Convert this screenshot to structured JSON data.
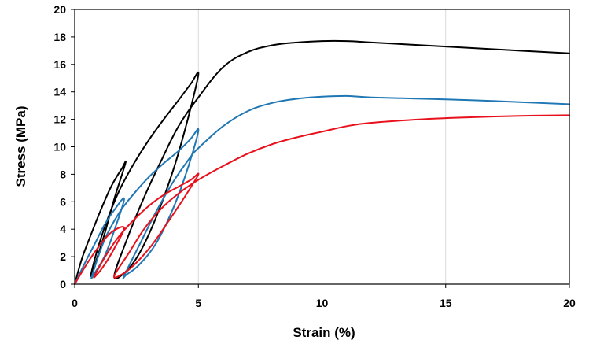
{
  "chart_data": {
    "type": "line",
    "title": "",
    "xlabel": "Strain (%)",
    "ylabel": "Stress (MPa)",
    "xlim": [
      0,
      20
    ],
    "ylim": [
      0,
      20
    ],
    "xticks": [
      0,
      5,
      10,
      15,
      20
    ],
    "yticks": [
      0,
      2,
      4,
      6,
      8,
      10,
      12,
      14,
      16,
      18,
      20
    ],
    "grid": "vertical",
    "legend": "none",
    "series": [
      {
        "color": "#000000",
        "x": [
          0,
          0.3,
          0.7,
          1.1,
          1.5,
          1.9,
          2.05,
          1.6,
          1.2,
          0.85,
          0.65,
          0.9,
          1.3,
          1.8,
          2.4,
          3.0,
          3.6,
          4.2,
          4.7,
          5.0,
          4.6,
          4.0,
          3.3,
          2.6,
          2.0,
          1.6,
          2.1,
          2.8,
          3.5,
          4.2,
          5.0,
          6.0,
          7.0,
          8.0,
          9.0,
          10.0,
          11.0,
          12.0,
          14.0,
          16.0,
          18.0,
          20.0
        ],
        "y": [
          0,
          1.9,
          3.8,
          5.6,
          7.2,
          8.4,
          8.8,
          6.2,
          3.6,
          1.6,
          0.6,
          2.4,
          4.6,
          6.8,
          8.8,
          10.5,
          12.0,
          13.4,
          14.6,
          15.3,
          12.2,
          8.4,
          4.9,
          2.2,
          0.8,
          0.6,
          3.2,
          6.3,
          9.0,
          11.5,
          13.6,
          15.8,
          16.9,
          17.4,
          17.6,
          17.7,
          17.7,
          17.6,
          17.4,
          17.2,
          17.0,
          16.8
        ]
      },
      {
        "color": "#1F77B4",
        "x": [
          0,
          0.4,
          0.8,
          1.2,
          1.6,
          2.0,
          1.6,
          1.2,
          0.8,
          0.7,
          1.2,
          1.8,
          2.4,
          3.0,
          3.6,
          4.2,
          4.7,
          5.0,
          4.6,
          4.0,
          3.3,
          2.6,
          2.1,
          2.0,
          2.6,
          3.3,
          4.0,
          4.7,
          5.0,
          6.0,
          7.0,
          8.0,
          9.0,
          10.0,
          11.0,
          12.0,
          14.0,
          16.0,
          18.0,
          20.0
        ],
        "y": [
          0,
          1.5,
          2.9,
          4.3,
          5.4,
          6.2,
          3.9,
          2.0,
          0.8,
          0.6,
          3.2,
          5.2,
          6.6,
          7.8,
          8.8,
          9.7,
          10.6,
          11.2,
          8.6,
          5.6,
          3.0,
          1.4,
          0.7,
          0.6,
          2.8,
          5.3,
          7.5,
          9.3,
          9.9,
          11.5,
          12.6,
          13.2,
          13.5,
          13.65,
          13.7,
          13.6,
          13.5,
          13.4,
          13.25,
          13.1
        ]
      },
      {
        "color": "#E8101A",
        "x": [
          0,
          0.5,
          1.0,
          1.5,
          2.0,
          1.6,
          1.2,
          0.9,
          0.8,
          1.3,
          1.8,
          2.4,
          3.0,
          3.6,
          4.2,
          4.7,
          5.0,
          4.5,
          3.8,
          3.1,
          2.4,
          1.9,
          1.6,
          2.2,
          2.8,
          3.5,
          4.2,
          5.0,
          6.0,
          7.0,
          8.0,
          9.0,
          10.0,
          11.0,
          12.0,
          14.0,
          16.0,
          18.0,
          20.0
        ],
        "y": [
          0,
          1.5,
          2.8,
          3.8,
          4.1,
          2.6,
          1.4,
          0.7,
          0.6,
          2.2,
          3.5,
          4.7,
          5.7,
          6.5,
          7.1,
          7.6,
          8.0,
          6.5,
          4.6,
          2.8,
          1.4,
          0.7,
          0.6,
          2.3,
          4.0,
          5.5,
          6.6,
          7.6,
          8.6,
          9.5,
          10.2,
          10.7,
          11.1,
          11.5,
          11.75,
          12.0,
          12.15,
          12.25,
          12.3
        ]
      }
    ]
  }
}
